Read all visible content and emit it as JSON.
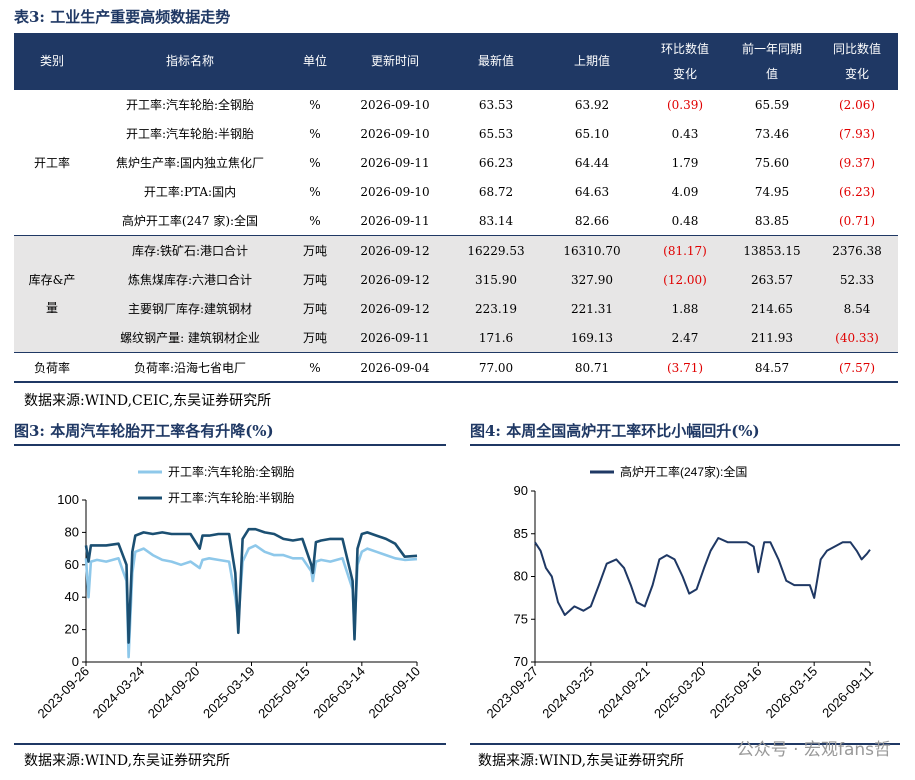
{
  "table": {
    "title": "表3:  工业生产重要高频数据走势",
    "headers": [
      "类别",
      "指标名称",
      "单位",
      "更新时间",
      "最新值",
      "上期值",
      "环比数值\n变化",
      "前一年同期\n值",
      "同比数值\n变化"
    ],
    "groups": [
      {
        "category": "开工率",
        "shade": false,
        "rows": [
          {
            "name": "开工率:汽车轮胎:全钢胎",
            "unit": "%",
            "date": "2026-09-10",
            "latest": "63.53",
            "prev": "63.92",
            "mom": "(0.39)",
            "yoy_base": "65.59",
            "yoy": "(2.06)"
          },
          {
            "name": "开工率:汽车轮胎:半钢胎",
            "unit": "%",
            "date": "2026-09-10",
            "latest": "65.53",
            "prev": "65.10",
            "mom": "0.43",
            "yoy_base": "73.46",
            "yoy": "(7.93)"
          },
          {
            "name": "焦炉生产率:国内独立焦化厂",
            "unit": "%",
            "date": "2026-09-11",
            "latest": "66.23",
            "prev": "64.44",
            "mom": "1.79",
            "yoy_base": "75.60",
            "yoy": "(9.37)"
          },
          {
            "name": "开工率:PTA:国内",
            "unit": "%",
            "date": "2026-09-10",
            "latest": "68.72",
            "prev": "64.63",
            "mom": "4.09",
            "yoy_base": "74.95",
            "yoy": "(6.23)"
          },
          {
            "name": "高炉开工率(247 家):全国",
            "unit": "%",
            "date": "2026-09-11",
            "latest": "83.14",
            "prev": "82.66",
            "mom": "0.48",
            "yoy_base": "83.85",
            "yoy": "(0.71)"
          }
        ]
      },
      {
        "category": "库存&产\n量",
        "shade": true,
        "rows": [
          {
            "name": "库存:铁矿石:港口合计",
            "unit": "万吨",
            "date": "2026-09-12",
            "latest": "16229.53",
            "prev": "16310.70",
            "mom": "(81.17)",
            "yoy_base": "13853.15",
            "yoy": "2376.38"
          },
          {
            "name": "炼焦煤库存:六港口合计",
            "unit": "万吨",
            "date": "2026-09-12",
            "latest": "315.90",
            "prev": "327.90",
            "mom": "(12.00)",
            "yoy_base": "263.57",
            "yoy": "52.33"
          },
          {
            "name": "主要钢厂库存:建筑钢材",
            "unit": "万吨",
            "date": "2026-09-12",
            "latest": "223.19",
            "prev": "221.31",
            "mom": "1.88",
            "yoy_base": "214.65",
            "yoy": "8.54"
          },
          {
            "name": "螺纹钢产量: 建筑钢材企业",
            "unit": "万吨",
            "date": "2026-09-11",
            "latest": "171.6",
            "prev": "169.13",
            "mom": "2.47",
            "yoy_base": "211.93",
            "yoy": "(40.33)"
          }
        ]
      },
      {
        "category": "负荷率",
        "shade": false,
        "rows": [
          {
            "name": "负荷率:沿海七省电厂",
            "unit": "%",
            "date": "2026-09-04",
            "latest": "77.00",
            "prev": "80.71",
            "mom": "(3.71)",
            "yoy_base": "84.57",
            "yoy": "(7.57)"
          }
        ]
      }
    ],
    "source": "数据来源:WIND,CEIC,东吴证券研究所"
  },
  "figures": {
    "fig3_title": "图3:  本周汽车轮胎开工率各有升降(%)",
    "fig3_source": "数据来源:WIND,东吴证券研究所",
    "fig4_title": "图4:  本周全国高炉开工率环比小幅回升(%)",
    "fig4_source": "数据来源:WIND,东吴证券研究所"
  },
  "watermark": "公众号 · 宏观fans哲",
  "colors": {
    "navy": "#1f3864",
    "light_series": "#8ec8ea",
    "dark_series": "#1b4f72",
    "red": "#e00000",
    "shade": "#e7e6e6"
  },
  "chart_data": [
    {
      "type": "line",
      "ylim": [
        0,
        100
      ],
      "yticks": [
        0,
        20,
        40,
        60,
        80,
        100
      ],
      "xticks": [
        "2023-09-26",
        "2024-03-24",
        "2024-09-20",
        "2025-03-19",
        "2025-09-15",
        "2026-03-14",
        "2026-09-10"
      ],
      "xlim": [
        "2023-09-26",
        "2026-09-10"
      ],
      "legend": "top-left",
      "series": [
        {
          "name": "开工率:汽车轮胎:全钢胎",
          "color": "#8ec8ea",
          "points": [
            [
              "2023-09-26",
              64
            ],
            [
              "2023-10-04",
              40
            ],
            [
              "2023-10-12",
              62
            ],
            [
              "2023-11-01",
              63
            ],
            [
              "2023-12-01",
              62
            ],
            [
              "2024-01-10",
              64
            ],
            [
              "2024-02-05",
              50
            ],
            [
              "2024-02-12",
              3
            ],
            [
              "2024-02-24",
              55
            ],
            [
              "2024-03-05",
              68
            ],
            [
              "2024-04-01",
              70
            ],
            [
              "2024-05-01",
              66
            ],
            [
              "2024-06-01",
              63
            ],
            [
              "2024-07-01",
              62
            ],
            [
              "2024-08-01",
              60
            ],
            [
              "2024-09-01",
              62
            ],
            [
              "2024-10-01",
              58
            ],
            [
              "2024-10-10",
              63
            ],
            [
              "2024-11-01",
              64
            ],
            [
              "2024-12-01",
              63
            ],
            [
              "2025-01-05",
              62
            ],
            [
              "2025-01-25",
              40
            ],
            [
              "2025-02-04",
              25
            ],
            [
              "2025-02-18",
              62
            ],
            [
              "2025-03-10",
              70
            ],
            [
              "2025-04-01",
              72
            ],
            [
              "2025-05-01",
              68
            ],
            [
              "2025-06-01",
              66
            ],
            [
              "2025-07-01",
              66
            ],
            [
              "2025-08-01",
              64
            ],
            [
              "2025-09-01",
              64
            ],
            [
              "2025-09-30",
              56
            ],
            [
              "2025-10-05",
              50
            ],
            [
              "2025-10-15",
              62
            ],
            [
              "2025-11-01",
              63
            ],
            [
              "2025-12-01",
              62
            ],
            [
              "2026-01-10",
              64
            ],
            [
              "2026-02-12",
              45
            ],
            [
              "2026-02-18",
              20
            ],
            [
              "2026-02-28",
              60
            ],
            [
              "2026-03-14",
              68
            ],
            [
              "2026-04-01",
              70
            ],
            [
              "2026-05-01",
              68
            ],
            [
              "2026-06-01",
              66
            ],
            [
              "2026-07-01",
              64
            ],
            [
              "2026-08-01",
              63
            ],
            [
              "2026-09-10",
              63.53
            ]
          ]
        },
        {
          "name": "开工率:汽车轮胎:半钢胎",
          "color": "#1b4f72",
          "points": [
            [
              "2023-09-26",
              72
            ],
            [
              "2023-10-04",
              62
            ],
            [
              "2023-10-12",
              72
            ],
            [
              "2023-11-01",
              72
            ],
            [
              "2023-12-01",
              72
            ],
            [
              "2024-01-10",
              73
            ],
            [
              "2024-02-05",
              60
            ],
            [
              "2024-02-12",
              12
            ],
            [
              "2024-02-24",
              68
            ],
            [
              "2024-03-05",
              78
            ],
            [
              "2024-04-01",
              80
            ],
            [
              "2024-05-01",
              79
            ],
            [
              "2024-06-01",
              80
            ],
            [
              "2024-07-01",
              79
            ],
            [
              "2024-08-01",
              79
            ],
            [
              "2024-09-01",
              79
            ],
            [
              "2024-10-01",
              70
            ],
            [
              "2024-10-10",
              78
            ],
            [
              "2024-11-01",
              78
            ],
            [
              "2024-12-01",
              79
            ],
            [
              "2025-01-05",
              79
            ],
            [
              "2025-01-25",
              55
            ],
            [
              "2025-02-04",
              18
            ],
            [
              "2025-02-18",
              76
            ],
            [
              "2025-03-10",
              82
            ],
            [
              "2025-04-01",
              82
            ],
            [
              "2025-05-01",
              80
            ],
            [
              "2025-06-01",
              79
            ],
            [
              "2025-07-01",
              76
            ],
            [
              "2025-08-01",
              75
            ],
            [
              "2025-09-01",
              76
            ],
            [
              "2025-09-30",
              60
            ],
            [
              "2025-10-05",
              55
            ],
            [
              "2025-10-15",
              74
            ],
            [
              "2025-11-01",
              75
            ],
            [
              "2025-12-01",
              76
            ],
            [
              "2026-01-10",
              76
            ],
            [
              "2026-02-12",
              50
            ],
            [
              "2026-02-18",
              14
            ],
            [
              "2026-02-28",
              70
            ],
            [
              "2026-03-14",
              79
            ],
            [
              "2026-04-01",
              80
            ],
            [
              "2026-05-01",
              78
            ],
            [
              "2026-06-01",
              76
            ],
            [
              "2026-07-01",
              73
            ],
            [
              "2026-08-01",
              65
            ],
            [
              "2026-09-10",
              65.53
            ]
          ]
        }
      ]
    },
    {
      "type": "line",
      "ylim": [
        70,
        90
      ],
      "yticks": [
        70,
        75,
        80,
        85,
        90
      ],
      "xticks": [
        "2023-09-27",
        "2024-03-25",
        "2024-09-21",
        "2025-03-20",
        "2025-09-16",
        "2026-03-15",
        "2026-09-11"
      ],
      "xlim": [
        "2023-09-27",
        "2026-09-11"
      ],
      "legend": "top-left",
      "series": [
        {
          "name": "高炉开工率(247家):全国",
          "color": "#1f3864",
          "points": [
            [
              "2023-09-27",
              84
            ],
            [
              "2023-10-15",
              83
            ],
            [
              "2023-11-01",
              81
            ],
            [
              "2023-11-20",
              80
            ],
            [
              "2023-12-10",
              77
            ],
            [
              "2024-01-01",
              75.5
            ],
            [
              "2024-02-01",
              76.5
            ],
            [
              "2024-03-01",
              76
            ],
            [
              "2024-03-25",
              76.5
            ],
            [
              "2024-04-20",
              79
            ],
            [
              "2024-05-15",
              81.5
            ],
            [
              "2024-06-15",
              82
            ],
            [
              "2024-07-10",
              81
            ],
            [
              "2024-08-01",
              79
            ],
            [
              "2024-08-20",
              77
            ],
            [
              "2024-09-15",
              76.5
            ],
            [
              "2024-10-10",
              79
            ],
            [
              "2024-11-01",
              82
            ],
            [
              "2024-11-25",
              82.5
            ],
            [
              "2024-12-20",
              82
            ],
            [
              "2025-01-15",
              80
            ],
            [
              "2025-02-05",
              78
            ],
            [
              "2025-03-01",
              78.5
            ],
            [
              "2025-03-25",
              81
            ],
            [
              "2025-04-15",
              83
            ],
            [
              "2025-05-10",
              84.5
            ],
            [
              "2025-06-10",
              84
            ],
            [
              "2025-07-10",
              84
            ],
            [
              "2025-08-10",
              84
            ],
            [
              "2025-09-01",
              83.5
            ],
            [
              "2025-09-16",
              80.5
            ],
            [
              "2025-10-05",
              84
            ],
            [
              "2025-10-25",
              84
            ],
            [
              "2025-11-20",
              82
            ],
            [
              "2025-12-15",
              79.5
            ],
            [
              "2026-01-10",
              79
            ],
            [
              "2026-02-10",
              79
            ],
            [
              "2026-03-01",
              79
            ],
            [
              "2026-03-15",
              77.5
            ],
            [
              "2026-04-05",
              82
            ],
            [
              "2026-04-25",
              83
            ],
            [
              "2026-05-20",
              83.5
            ],
            [
              "2026-06-15",
              84
            ],
            [
              "2026-07-10",
              84
            ],
            [
              "2026-07-30",
              83
            ],
            [
              "2026-08-15",
              82
            ],
            [
              "2026-09-01",
              82.66
            ],
            [
              "2026-09-11",
              83.14
            ]
          ]
        }
      ]
    }
  ]
}
